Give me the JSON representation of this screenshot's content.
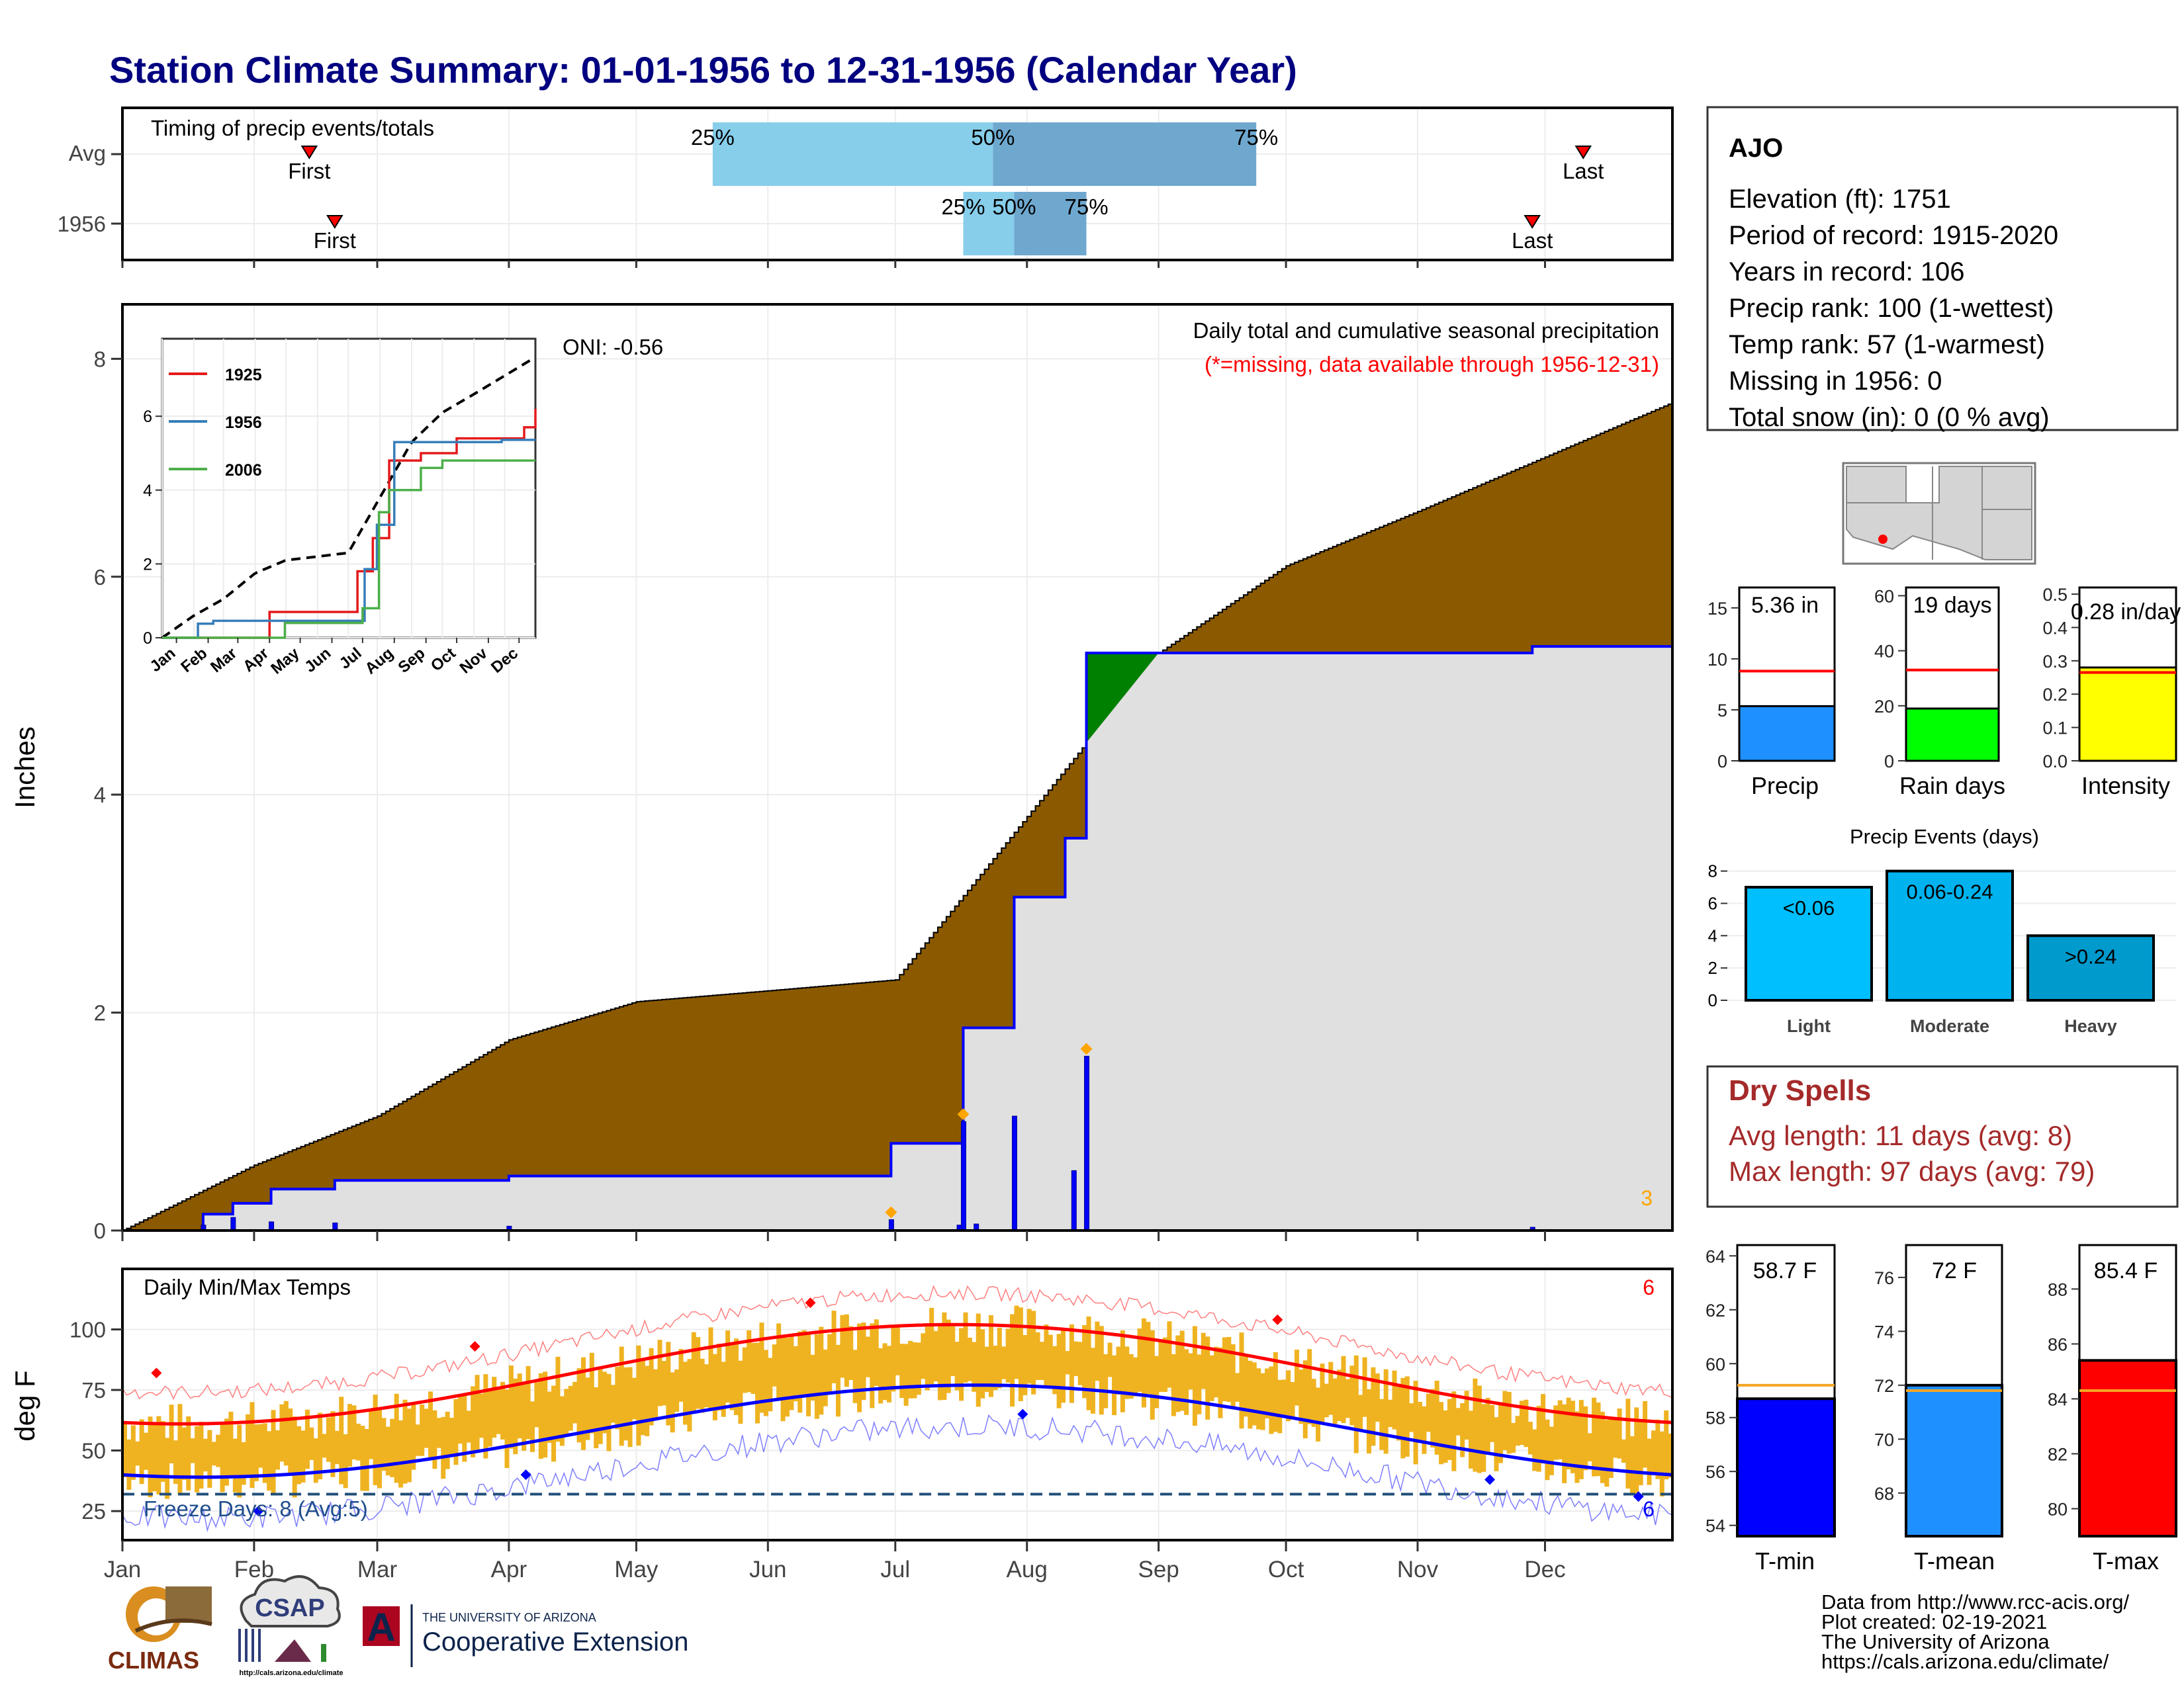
{
  "title": "Station Climate Summary: 01-01-1956 to 12-31-1956 (Calendar Year)",
  "timing": {
    "label": "Timing of precip events/totals",
    "rows": [
      {
        "label": "Avg",
        "first_label": "First",
        "last_label": "Last",
        "first_date": "Feb 14",
        "last_date": "Dec 10",
        "p25_label": "25%",
        "p50_label": "50%",
        "p75_label": "75%",
        "p25_date": "May 19",
        "p50_date": "Jul 24",
        "p75_date": "Sep 24"
      },
      {
        "label": "1956",
        "first_label": "First",
        "last_label": "Last",
        "first_date": "Feb 20",
        "last_date": "Nov 28",
        "p25_label": "25%",
        "p50_label": "50%",
        "p75_label": "75%",
        "p25_date": "Jul 17",
        "p50_date": "Jul 29",
        "p75_date": "Aug 15"
      }
    ]
  },
  "precip_panel": {
    "annotation_title": "Daily total and cumulative seasonal precipitation",
    "annotation_missing": "(*=missing, data available through 1956-12-31)",
    "oni": "ONI: -0.56",
    "ylabel": "Inches",
    "yticks": [
      "0",
      "2",
      "4",
      "6",
      "8"
    ],
    "corner_count": "3",
    "colors": {
      "avg_fill": "#8b5a00",
      "year_fill": "#e0e0e0",
      "above_fill": "#008000",
      "line": "#0000ff",
      "marker": "#ffa500"
    }
  },
  "inset": {
    "legend": [
      "1925",
      "1956",
      "2006"
    ],
    "legend_colors": [
      "#e41a1c",
      "#377eb8",
      "#4daf4a"
    ],
    "yticks": [
      "0",
      "2",
      "4",
      "6"
    ],
    "xticks": [
      "Jan",
      "Feb",
      "Mar",
      "Apr",
      "May",
      "Jun",
      "Jul",
      "Aug",
      "Sep",
      "Oct",
      "Nov",
      "Dec"
    ]
  },
  "temp_panel": {
    "label": "Daily Min/Max Temps",
    "ylabel": "deg F",
    "yticks": [
      "25",
      "50",
      "75",
      "100"
    ],
    "freeze": "Freeze Days: 8 (Avg:5)",
    "count_high": "6",
    "count_low": "6"
  },
  "months": [
    "Jan",
    "Feb",
    "Mar",
    "Apr",
    "May",
    "Jun",
    "Jul",
    "Aug",
    "Sep",
    "Oct",
    "Nov",
    "Dec"
  ],
  "station": {
    "name": "AJO",
    "lines": [
      "Elevation (ft): 1751",
      "Period of record: 1915-2020",
      "Years in record: 106",
      "Precip rank: 100 (1-wettest)",
      "Temp rank: 57 (1-warmest)",
      "Missing in 1956: 0",
      "Total snow (in): 0 (0 % avg)"
    ]
  },
  "mini_bars": [
    {
      "label": "Precip",
      "value_label": "5.36 in",
      "value": 5.36,
      "avg": 8.8,
      "ymax": 17,
      "yticks": [
        "0",
        "5",
        "10",
        "15"
      ],
      "color": "#1e90ff"
    },
    {
      "label": "Rain days",
      "value_label": "19 days",
      "value": 19,
      "avg": 33,
      "ymax": 63,
      "yticks": [
        "0",
        "20",
        "40",
        "60"
      ],
      "color": "#00ff00"
    },
    {
      "label": "Intensity",
      "value_label": "0.28 in/day",
      "value": 0.28,
      "avg": 0.265,
      "ymax": 0.52,
      "yticks": [
        "0.0",
        "0.1",
        "0.2",
        "0.3",
        "0.4",
        "0.5"
      ],
      "color": "#ffff00"
    }
  ],
  "precip_events": {
    "title": "Precip Events (days)",
    "categories": [
      "Light",
      "Moderate",
      "Heavy"
    ],
    "bar_labels": [
      "<0.06",
      "0.06-0.24",
      ">0.24"
    ],
    "values": [
      7,
      8,
      4
    ],
    "yticks": [
      "0",
      "2",
      "4",
      "6",
      "8"
    ],
    "colors": [
      "#00bfff",
      "#00b2ee",
      "#009acd"
    ]
  },
  "dry_spells": {
    "title": "Dry Spells",
    "avg": "Avg length: 11 days (avg: 8)",
    "max": "Max length: 97 days (avg: 79)"
  },
  "temp_bars": [
    {
      "label": "T-min",
      "value_label": "58.7 F",
      "value": 58.7,
      "avg": 59.2,
      "ymin": 53.6,
      "ymax": 64.4,
      "ticks": [
        54,
        56,
        58,
        60,
        62,
        64
      ],
      "color": "#0000ff"
    },
    {
      "label": "T-mean",
      "value_label": "72 F",
      "value": 72.0,
      "avg": 71.8,
      "ymin": 66.4,
      "ymax": 77.2,
      "ticks": [
        68,
        70,
        72,
        74,
        76
      ],
      "color": "#1e90ff"
    },
    {
      "label": "T-max",
      "value_label": "85.4 F",
      "value": 85.4,
      "avg": 84.3,
      "ymin": 79.0,
      "ymax": 89.6,
      "ticks": [
        80,
        82,
        84,
        86,
        88
      ],
      "color": "#ff0000"
    }
  ],
  "footer": {
    "lines": [
      "Data from http://www.rcc-acis.org/",
      "Plot created: 02-19-2021",
      "The University of Arizona",
      "https://cals.arizona.edu/climate/"
    ],
    "logo_climas": "CLIMAS",
    "logo_csap": "CSAP",
    "logo_csap_url": "http://cals.arizona.edu/climate",
    "ua_line1": "THE UNIVERSITY OF ARIZONA",
    "ua_line2": "Cooperative Extension",
    "ua_mark": "A"
  },
  "chart_data": {
    "type": "area",
    "title": "Daily total and cumulative seasonal precipitation",
    "ylabel": "Inches",
    "ylim": [
      0,
      8.5
    ],
    "series": [
      {
        "name": "",
        "x": [
          "Jan 01",
          "Feb 01",
          "Mar 01",
          "Apr 01",
          "May 01",
          "Jun 01",
          "Jul 01",
          "Aug 01",
          "Sep 01",
          "Oct 01",
          "Nov 01",
          "Dec 01",
          "Dec 31"
        ],
        "values": [
          0.0,
          0.6,
          1.05,
          1.75,
          2.1,
          2.2,
          2.3,
          3.8,
          5.3,
          6.1,
          6.6,
          7.1,
          7.6
        ]
      },
      {
        "name": "1956",
        "x": [
          "Jan 01",
          "Jan 20",
          "Jan 27",
          "Feb 05",
          "Feb 20",
          "Apr 01",
          "Jun 30",
          "Jul 17",
          "Jul 29",
          "Aug 10",
          "Aug 15",
          "Nov 28",
          "Dec 31"
        ],
        "values": [
          0.0,
          0.15,
          0.25,
          0.38,
          0.46,
          0.5,
          0.8,
          1.86,
          3.06,
          3.6,
          5.3,
          5.36,
          5.36
        ]
      }
    ],
    "daily_bars": {
      "x": [
        "Jan 20",
        "Jan 27",
        "Feb 05",
        "Feb 20",
        "Apr 01",
        "Jun 30",
        "Jul 16",
        "Jul 17",
        "Jul 20",
        "Jul 29",
        "Aug 12",
        "Aug 15",
        "Nov 28"
      ],
      "values": [
        0.05,
        0.12,
        0.08,
        0.07,
        0.04,
        0.1,
        0.05,
        1.0,
        0.06,
        1.05,
        0.55,
        1.6,
        0.03
      ]
    },
    "inset_series": [
      {
        "name": "1925",
        "x": [
          "Jan",
          "Apr 15",
          "Jul 10",
          "Jul 25",
          "Aug 10",
          "Sep 10",
          "Oct 15",
          "Dec 20",
          "Dec 31"
        ],
        "values": [
          0,
          0.7,
          1.8,
          2.7,
          4.8,
          5.0,
          5.4,
          5.7,
          6.2
        ]
      },
      {
        "name": "1956",
        "x": [
          "Jan",
          "Feb 05",
          "Feb 20",
          "Jul 17",
          "Jul 29",
          "Aug 15",
          "Nov 28",
          "Dec 31"
        ],
        "values": [
          0,
          0.38,
          0.46,
          1.86,
          3.06,
          5.3,
          5.36,
          5.36
        ]
      },
      {
        "name": "2006",
        "x": [
          "Jan",
          "Apr 30",
          "Jul 15",
          "Jul 31",
          "Aug 10",
          "Sep 10",
          "Oct 01",
          "Dec 31"
        ],
        "values": [
          0,
          0.4,
          0.8,
          3.4,
          4.0,
          4.6,
          4.8,
          4.8
        ]
      }
    ]
  }
}
